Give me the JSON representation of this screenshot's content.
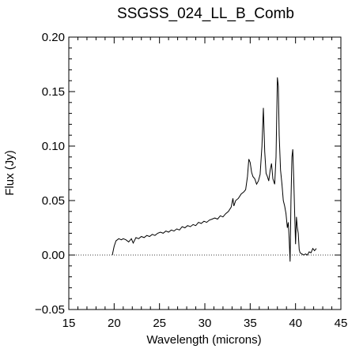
{
  "chart_data": {
    "type": "line",
    "title": "SSGSS_024_LL_B_Comb",
    "xlabel": "Wavelength (microns)",
    "ylabel": "Flux (Jy)",
    "xlim": [
      15,
      45
    ],
    "ylim": [
      -0.05,
      0.2
    ],
    "xticks": [
      15,
      20,
      25,
      30,
      35,
      40,
      45
    ],
    "xtick_labels": [
      "15",
      "20",
      "25",
      "30",
      "35",
      "40",
      "45"
    ],
    "yticks": [
      -0.05,
      0.0,
      0.05,
      0.1,
      0.15,
      0.2
    ],
    "ytick_labels": [
      "−0.05",
      "0.00",
      "0.05",
      "0.10",
      "0.15",
      "0.20"
    ],
    "zero_line": {
      "y": 0.0,
      "style": "dotted"
    },
    "grid": false,
    "series": [
      {
        "line_color": "#000000",
        "x": [
          19.8,
          20.0,
          20.2,
          20.5,
          20.8,
          21.0,
          21.3,
          21.6,
          21.9,
          22.1,
          22.4,
          22.7,
          23.0,
          23.3,
          23.6,
          23.9,
          24.2,
          24.5,
          24.8,
          25.1,
          25.4,
          25.7,
          26.0,
          26.3,
          26.6,
          26.9,
          27.2,
          27.5,
          27.8,
          28.1,
          28.4,
          28.7,
          29.0,
          29.3,
          29.6,
          29.9,
          30.2,
          30.5,
          30.8,
          31.1,
          31.4,
          31.7,
          32.0,
          32.3,
          32.6,
          32.9,
          33.1,
          33.2,
          33.4,
          33.7,
          34.0,
          34.3,
          34.5,
          34.7,
          34.85,
          35.0,
          35.15,
          35.3,
          35.5,
          35.7,
          35.9,
          36.1,
          36.3,
          36.45,
          36.6,
          36.75,
          36.9,
          37.05,
          37.2,
          37.35,
          37.5,
          37.7,
          37.85,
          38.0,
          38.1,
          38.2,
          38.35,
          38.5,
          38.65,
          38.8,
          38.95,
          39.1,
          39.2,
          39.3,
          39.4,
          39.5,
          39.6,
          39.7,
          39.8,
          39.9,
          40.0,
          40.1,
          40.2,
          40.3,
          40.4,
          40.5,
          40.7,
          40.9,
          41.1,
          41.3,
          41.5,
          41.7,
          41.9,
          42.1,
          42.3
        ],
        "y": [
          0.0,
          0.008,
          0.013,
          0.015,
          0.014,
          0.015,
          0.014,
          0.012,
          0.015,
          0.011,
          0.016,
          0.015,
          0.017,
          0.016,
          0.018,
          0.017,
          0.019,
          0.018,
          0.02,
          0.021,
          0.02,
          0.022,
          0.021,
          0.023,
          0.022,
          0.024,
          0.023,
          0.026,
          0.025,
          0.027,
          0.026,
          0.028,
          0.027,
          0.03,
          0.029,
          0.031,
          0.03,
          0.032,
          0.033,
          0.034,
          0.033,
          0.036,
          0.035,
          0.038,
          0.04,
          0.044,
          0.052,
          0.045,
          0.05,
          0.052,
          0.056,
          0.058,
          0.06,
          0.072,
          0.088,
          0.085,
          0.076,
          0.072,
          0.07,
          0.065,
          0.068,
          0.074,
          0.1,
          0.135,
          0.095,
          0.075,
          0.072,
          0.068,
          0.078,
          0.084,
          0.07,
          0.065,
          0.09,
          0.163,
          0.155,
          0.11,
          0.078,
          0.065,
          0.05,
          0.045,
          0.038,
          0.025,
          0.03,
          0.015,
          -0.006,
          0.05,
          0.09,
          0.097,
          0.07,
          0.04,
          0.01,
          0.035,
          0.025,
          0.02,
          0.005,
          0.002,
          0.001,
          0.0,
          0.001,
          0.0,
          0.003,
          0.002,
          0.006,
          0.004,
          0.006
        ]
      }
    ]
  }
}
